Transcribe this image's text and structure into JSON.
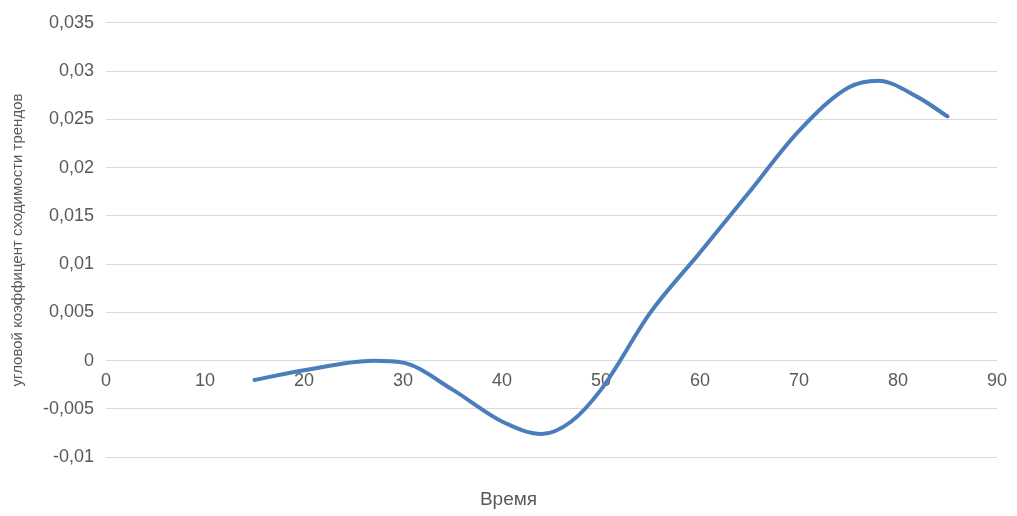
{
  "chart_data": {
    "type": "line",
    "xlabel": "Время",
    "ylabel": "угловой коэффицент сходимости трендов",
    "xlim": [
      0,
      90
    ],
    "xticks": [
      0,
      10,
      20,
      30,
      40,
      50,
      60,
      70,
      80,
      90
    ],
    "ylim": [
      -0.01,
      0.035
    ],
    "yticks": [
      {
        "value": -0.01,
        "label": "-0,01"
      },
      {
        "value": -0.005,
        "label": "-0,005"
      },
      {
        "value": 0,
        "label": "0"
      },
      {
        "value": 0.005,
        "label": "0,005"
      },
      {
        "value": 0.01,
        "label": "0,01"
      },
      {
        "value": 0.015,
        "label": "0,015"
      },
      {
        "value": 0.02,
        "label": "0,02"
      },
      {
        "value": 0.025,
        "label": "0,025"
      },
      {
        "value": 0.03,
        "label": "0,03"
      },
      {
        "value": 0.035,
        "label": "0,035"
      }
    ],
    "grid": "y",
    "legend": false,
    "marker": "none",
    "series": [
      {
        "color": "#4a7ebb",
        "x": [
          15,
          20,
          27,
          30,
          35,
          40,
          44,
          47,
          50,
          55,
          60,
          65,
          70,
          75,
          78,
          82,
          85
        ],
        "values": [
          -0.002,
          -0.001,
          0,
          -0.0002,
          -0.003,
          -0.0063,
          -0.0076,
          -0.0063,
          -0.003,
          0.005,
          0.0112,
          0.0175,
          0.0238,
          0.0283,
          0.029,
          0.0273,
          0.0253
        ]
      }
    ]
  }
}
